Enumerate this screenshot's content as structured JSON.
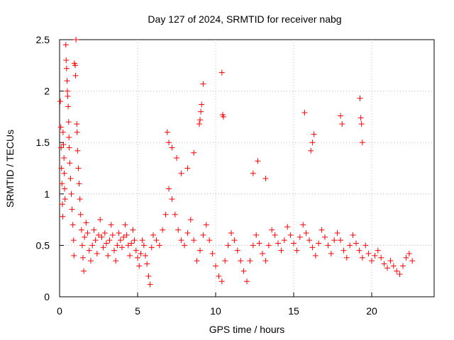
{
  "chart_data": {
    "type": "scatter",
    "title": "Day 127 of 2024, SRMTID for receiver nabg",
    "xlabel": "GPS time / hours",
    "ylabel": "SRMTID / TECUs",
    "xlim": [
      0,
      24
    ],
    "ylim": [
      0,
      2.5
    ],
    "x_ticks": [
      0,
      5,
      10,
      15,
      20
    ],
    "x_tick_labels": [
      "0",
      "5",
      "10",
      "15",
      "20"
    ],
    "y_ticks": [
      0,
      0.5,
      1,
      1.5,
      2,
      2.5
    ],
    "y_tick_labels": [
      "0",
      "0.5",
      "1",
      "1.5",
      "2",
      "2.5"
    ],
    "grid": true,
    "marker": "+",
    "series": [
      {
        "name": "SRMTID",
        "color": "#ff0000",
        "points": [
          [
            0.05,
            1.9
          ],
          [
            0.08,
            1.65
          ],
          [
            0.1,
            1.45
          ],
          [
            0.12,
            1.25
          ],
          [
            0.15,
            1.1
          ],
          [
            0.18,
            0.9
          ],
          [
            0.2,
            0.78
          ],
          [
            0.22,
            1.6
          ],
          [
            0.25,
            1.48
          ],
          [
            0.28,
            1.35
          ],
          [
            0.3,
            1.2
          ],
          [
            0.32,
            1.05
          ],
          [
            0.35,
            0.95
          ],
          [
            0.4,
            2.45
          ],
          [
            0.42,
            2.3
          ],
          [
            0.45,
            2.22
          ],
          [
            0.48,
            2.1
          ],
          [
            0.5,
            2.0
          ],
          [
            0.52,
            1.95
          ],
          [
            0.55,
            1.85
          ],
          [
            0.58,
            1.7
          ],
          [
            0.6,
            1.55
          ],
          [
            0.62,
            1.45
          ],
          [
            0.65,
            1.3
          ],
          [
            0.7,
            1.15
          ],
          [
            0.75,
            1.0
          ],
          [
            0.8,
            0.85
          ],
          [
            0.85,
            0.7
          ],
          [
            0.9,
            0.55
          ],
          [
            0.92,
            0.4
          ],
          [
            0.95,
            2.27
          ],
          [
            1.0,
            2.25
          ],
          [
            1.02,
            2.15
          ],
          [
            1.05,
            2.5
          ],
          [
            1.1,
            1.68
          ],
          [
            1.12,
            1.6
          ],
          [
            1.15,
            1.42
          ],
          [
            1.2,
            1.25
          ],
          [
            1.25,
            1.1
          ],
          [
            1.3,
            0.95
          ],
          [
            1.35,
            0.8
          ],
          [
            1.4,
            0.65
          ],
          [
            1.45,
            0.5
          ],
          [
            1.5,
            0.38
          ],
          [
            1.55,
            0.25
          ],
          [
            1.6,
            0.58
          ],
          [
            1.7,
            0.72
          ],
          [
            1.8,
            0.62
          ],
          [
            1.9,
            0.45
          ],
          [
            2.0,
            0.35
          ],
          [
            2.1,
            0.5
          ],
          [
            2.2,
            0.65
          ],
          [
            2.3,
            0.55
          ],
          [
            2.4,
            0.42
          ],
          [
            2.5,
            0.6
          ],
          [
            2.6,
            0.75
          ],
          [
            2.7,
            0.58
          ],
          [
            2.8,
            0.48
          ],
          [
            2.9,
            0.62
          ],
          [
            3.0,
            0.52
          ],
          [
            3.1,
            0.4
          ],
          [
            3.2,
            0.55
          ],
          [
            3.3,
            0.7
          ],
          [
            3.4,
            0.6
          ],
          [
            3.5,
            0.45
          ],
          [
            3.6,
            0.35
          ],
          [
            3.7,
            0.5
          ],
          [
            3.8,
            0.62
          ],
          [
            3.9,
            0.55
          ],
          [
            4.0,
            0.48
          ],
          [
            4.1,
            0.58
          ],
          [
            4.2,
            0.7
          ],
          [
            4.3,
            0.6
          ],
          [
            4.4,
            0.5
          ],
          [
            4.5,
            0.4
          ],
          [
            4.6,
            0.52
          ],
          [
            4.7,
            0.65
          ],
          [
            4.8,
            0.55
          ],
          [
            4.9,
            0.45
          ],
          [
            5.0,
            0.38
          ],
          [
            5.1,
            0.3
          ],
          [
            5.2,
            0.42
          ],
          [
            5.3,
            0.55
          ],
          [
            5.4,
            0.5
          ],
          [
            5.5,
            0.4
          ],
          [
            5.6,
            0.32
          ],
          [
            5.7,
            0.2
          ],
          [
            5.8,
            0.12
          ],
          [
            5.9,
            0.48
          ],
          [
            6.0,
            0.6
          ],
          [
            6.2,
            0.55
          ],
          [
            6.4,
            0.5
          ],
          [
            6.6,
            0.65
          ],
          [
            6.8,
            0.8
          ],
          [
            7.0,
            1.05
          ],
          [
            7.2,
            0.95
          ],
          [
            7.4,
            0.8
          ],
          [
            7.6,
            0.65
          ],
          [
            7.8,
            0.55
          ],
          [
            8.0,
            0.5
          ],
          [
            8.2,
            0.62
          ],
          [
            8.4,
            0.75
          ],
          [
            8.6,
            0.55
          ],
          [
            8.8,
            0.35
          ],
          [
            9.0,
            0.45
          ],
          [
            9.2,
            0.6
          ],
          [
            9.4,
            0.7
          ],
          [
            9.6,
            0.55
          ],
          [
            9.8,
            0.42
          ],
          [
            10.0,
            0.3
          ],
          [
            10.2,
            0.2
          ],
          [
            10.4,
            0.15
          ],
          [
            10.6,
            0.35
          ],
          [
            10.8,
            0.5
          ],
          [
            11.0,
            0.62
          ],
          [
            11.2,
            0.55
          ],
          [
            11.4,
            0.45
          ],
          [
            11.6,
            0.35
          ],
          [
            11.8,
            0.25
          ],
          [
            12.0,
            0.15
          ],
          [
            12.2,
            0.35
          ],
          [
            12.4,
            0.5
          ],
          [
            12.6,
            0.6
          ],
          [
            12.8,
            0.52
          ],
          [
            13.0,
            0.42
          ],
          [
            13.2,
            0.35
          ],
          [
            13.4,
            0.5
          ],
          [
            13.6,
            0.65
          ],
          [
            13.8,
            0.6
          ],
          [
            14.0,
            0.52
          ],
          [
            14.2,
            0.45
          ],
          [
            14.4,
            0.55
          ],
          [
            14.6,
            0.68
          ],
          [
            14.8,
            0.6
          ],
          [
            15.0,
            0.52
          ],
          [
            15.2,
            0.45
          ],
          [
            15.4,
            0.58
          ],
          [
            15.6,
            0.7
          ],
          [
            15.8,
            0.62
          ],
          [
            16.0,
            0.55
          ],
          [
            16.2,
            0.48
          ],
          [
            16.4,
            0.4
          ],
          [
            16.6,
            0.52
          ],
          [
            16.8,
            0.65
          ],
          [
            17.0,
            0.58
          ],
          [
            17.2,
            0.5
          ],
          [
            17.4,
            0.42
          ],
          [
            17.6,
            0.55
          ],
          [
            17.8,
            0.62
          ],
          [
            18.0,
            0.55
          ],
          [
            18.2,
            0.45
          ],
          [
            18.4,
            0.38
          ],
          [
            18.6,
            0.5
          ],
          [
            18.8,
            0.6
          ],
          [
            19.0,
            0.52
          ],
          [
            19.2,
            0.45
          ],
          [
            19.4,
            0.38
          ],
          [
            19.6,
            0.5
          ],
          [
            19.8,
            0.42
          ],
          [
            20.0,
            0.35
          ],
          [
            20.2,
            0.4
          ],
          [
            20.4,
            0.45
          ],
          [
            20.6,
            0.38
          ],
          [
            20.8,
            0.32
          ],
          [
            21.0,
            0.28
          ],
          [
            21.2,
            0.35
          ],
          [
            21.4,
            0.3
          ],
          [
            21.6,
            0.25
          ],
          [
            21.8,
            0.22
          ],
          [
            22.0,
            0.3
          ],
          [
            22.2,
            0.38
          ],
          [
            22.4,
            0.42
          ],
          [
            22.6,
            0.35
          ],
          [
            6.9,
            1.6
          ],
          [
            7.0,
            1.5
          ],
          [
            7.2,
            1.45
          ],
          [
            7.5,
            1.35
          ],
          [
            7.8,
            1.2
          ],
          [
            8.2,
            1.25
          ],
          [
            8.6,
            1.4
          ],
          [
            9.2,
            2.07
          ],
          [
            9.1,
            1.87
          ],
          [
            9.05,
            1.8
          ],
          [
            9.0,
            1.72
          ],
          [
            8.95,
            1.68
          ],
          [
            10.4,
            2.18
          ],
          [
            10.45,
            1.77
          ],
          [
            10.5,
            1.75
          ],
          [
            12.7,
            1.32
          ],
          [
            12.4,
            1.2
          ],
          [
            13.2,
            1.15
          ],
          [
            15.7,
            1.79
          ],
          [
            16.3,
            1.58
          ],
          [
            16.2,
            1.5
          ],
          [
            16.1,
            1.42
          ],
          [
            18.0,
            1.76
          ],
          [
            18.1,
            1.68
          ],
          [
            19.25,
            1.93
          ],
          [
            19.3,
            1.74
          ],
          [
            19.35,
            1.68
          ],
          [
            19.4,
            1.5
          ]
        ]
      }
    ]
  }
}
